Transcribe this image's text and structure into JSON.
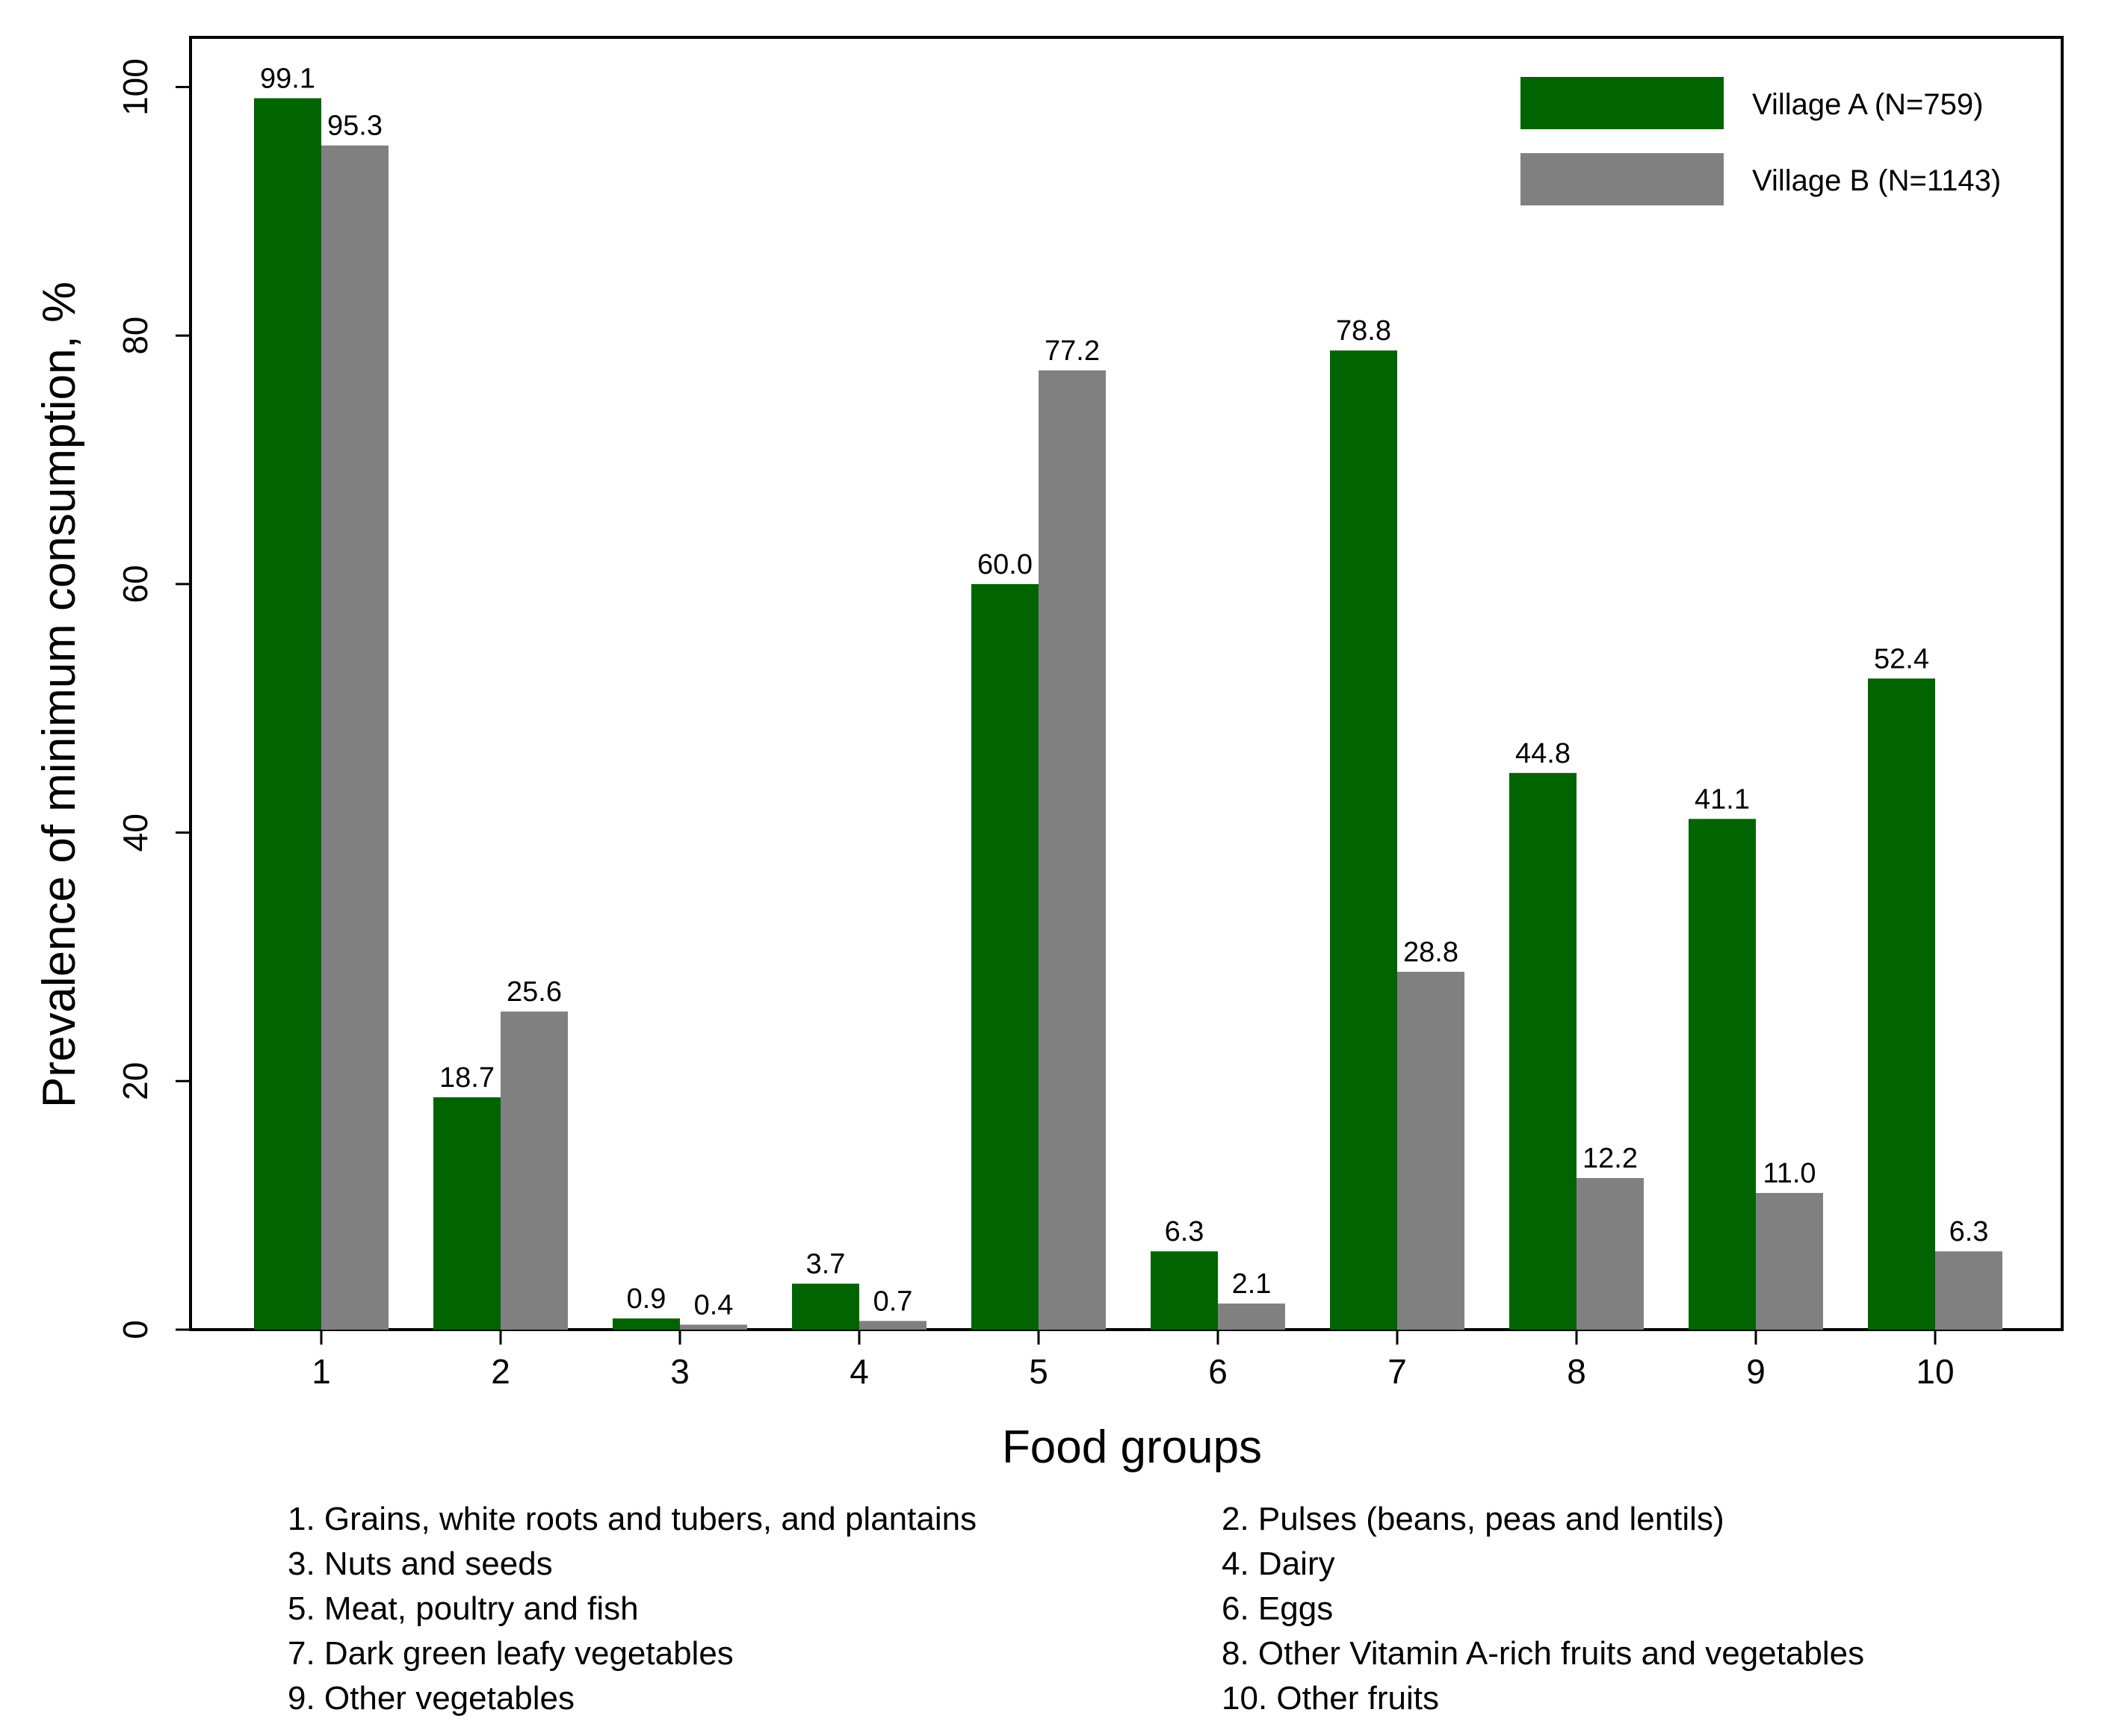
{
  "chart_data": {
    "type": "bar",
    "title": "",
    "xlabel": "Food groups",
    "ylabel": "Prevalence of minimum consumption, %",
    "ylim": [
      0,
      104
    ],
    "yticks": [
      "0",
      "20",
      "40",
      "60",
      "80",
      "100"
    ],
    "categories": [
      "1",
      "2",
      "3",
      "4",
      "5",
      "6",
      "7",
      "8",
      "9",
      "10"
    ],
    "series": [
      {
        "name": "Village A (N=759)",
        "color": "#006400",
        "values": [
          99.1,
          18.7,
          0.9,
          3.7,
          60.0,
          6.3,
          78.8,
          44.8,
          41.1,
          52.4
        ],
        "labels": [
          "99.1",
          "18.7",
          "0.9",
          "3.7",
          "60.0",
          "6.3",
          "78.8",
          "44.8",
          "41.1",
          "52.4"
        ]
      },
      {
        "name": "Village B (N=1143)",
        "color": "#808080",
        "values": [
          95.3,
          25.6,
          0.4,
          0.7,
          77.2,
          2.1,
          28.8,
          12.2,
          11.0,
          6.3
        ],
        "labels": [
          "95.3",
          "25.6",
          "0.4",
          "0.7",
          "77.2",
          "2.1",
          "28.8",
          "12.2",
          "11.0",
          "6.3"
        ]
      }
    ],
    "legend_position": "top-right",
    "grid": false,
    "category_notes": [
      "1. Grains, white roots and tubers, and plantains",
      "2. Pulses (beans, peas and lentils)",
      "3. Nuts and seeds",
      "4. Dairy",
      "5. Meat, poultry and fish",
      "6. Eggs",
      "7. Dark green leafy vegetables",
      "8. Other Vitamin A-rich fruits and vegetables",
      "9. Other vegetables",
      "10. Other fruits"
    ]
  }
}
